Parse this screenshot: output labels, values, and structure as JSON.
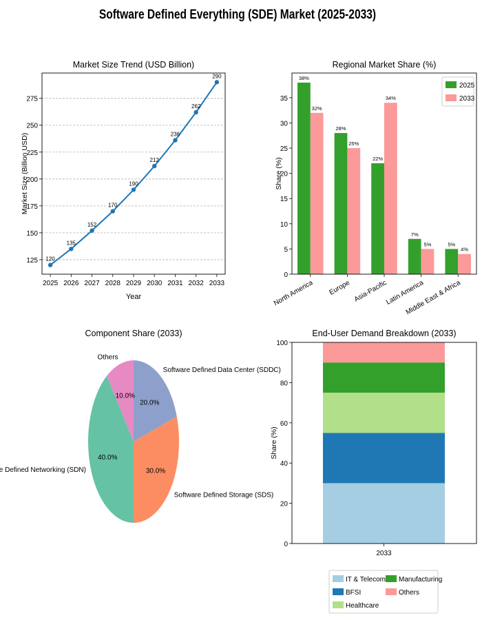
{
  "title": "Software Defined Everything (SDE) Market (2025-2033)",
  "chart_data": [
    {
      "type": "line",
      "title": "Market Size Trend (USD Billion)",
      "xlabel": "Year",
      "ylabel": "Market Size (Billion USD)",
      "x": [
        2025,
        2026,
        2027,
        2028,
        2029,
        2030,
        2031,
        2032,
        2033
      ],
      "values": [
        120,
        135,
        152,
        170,
        190,
        212,
        236,
        262,
        290
      ],
      "data_labels": [
        "120",
        "135",
        "152",
        "170",
        "190",
        "212",
        "236",
        "262",
        "290"
      ],
      "yticks": [
        125,
        150,
        175,
        200,
        225,
        250,
        275
      ],
      "ylim": [
        111.5,
        298.5
      ],
      "grid": "horizontal dashed",
      "color": "#1f77b4"
    },
    {
      "type": "bar",
      "title": "Regional Market Share (%)",
      "ylabel": "Share (%)",
      "categories": [
        "North America",
        "Europe",
        "Asia-Pacific",
        "Latin America",
        "Middle East & Africa"
      ],
      "series": [
        {
          "name": "2025",
          "values": [
            38,
            28,
            22,
            7,
            5
          ],
          "labels": [
            "38%",
            "28%",
            "22%",
            "7%",
            "5%"
          ],
          "color": "#33a02c"
        },
        {
          "name": "2033",
          "values": [
            32,
            25,
            34,
            5,
            4
          ],
          "labels": [
            "32%",
            "25%",
            "34%",
            "5%",
            "4%"
          ],
          "color": "#fb9a99"
        }
      ],
      "yticks": [
        0,
        5,
        10,
        15,
        20,
        25,
        30,
        35
      ],
      "ylim": [
        0,
        39.9
      ],
      "legend": "top-right"
    },
    {
      "type": "pie",
      "title": "Component Share (2033)",
      "slices": [
        {
          "label": "Software Defined Data Center (SDDC)",
          "value": 20,
          "pct": "20.0%",
          "color": "#8da0cb"
        },
        {
          "label": "Software Defined Storage (SDS)",
          "value": 30,
          "pct": "30.0%",
          "color": "#fc8d62"
        },
        {
          "label": "Software Defined Networking (SDN)",
          "value": 40,
          "pct": "40.0%",
          "color": "#66c2a5"
        },
        {
          "label": "Others",
          "value": 10,
          "pct": "10.0%",
          "color": "#e78ac3"
        }
      ]
    },
    {
      "type": "bar",
      "stacked": true,
      "title": "End-User Demand Breakdown (2033)",
      "ylabel": "Share (%)",
      "categories": [
        "2033"
      ],
      "series": [
        {
          "name": "IT & Telecom",
          "values": [
            30
          ],
          "color": "#a6cee3"
        },
        {
          "name": "BFSI",
          "values": [
            25
          ],
          "color": "#1f78b4"
        },
        {
          "name": "Healthcare",
          "values": [
            20
          ],
          "color": "#b2df8a"
        },
        {
          "name": "Manufacturing",
          "values": [
            15
          ],
          "color": "#33a02c"
        },
        {
          "name": "Others",
          "values": [
            10
          ],
          "color": "#fb9a99"
        }
      ],
      "yticks": [
        0,
        20,
        40,
        60,
        80,
        100
      ],
      "ylim": [
        0,
        100
      ],
      "legend": "bottom-center"
    }
  ]
}
